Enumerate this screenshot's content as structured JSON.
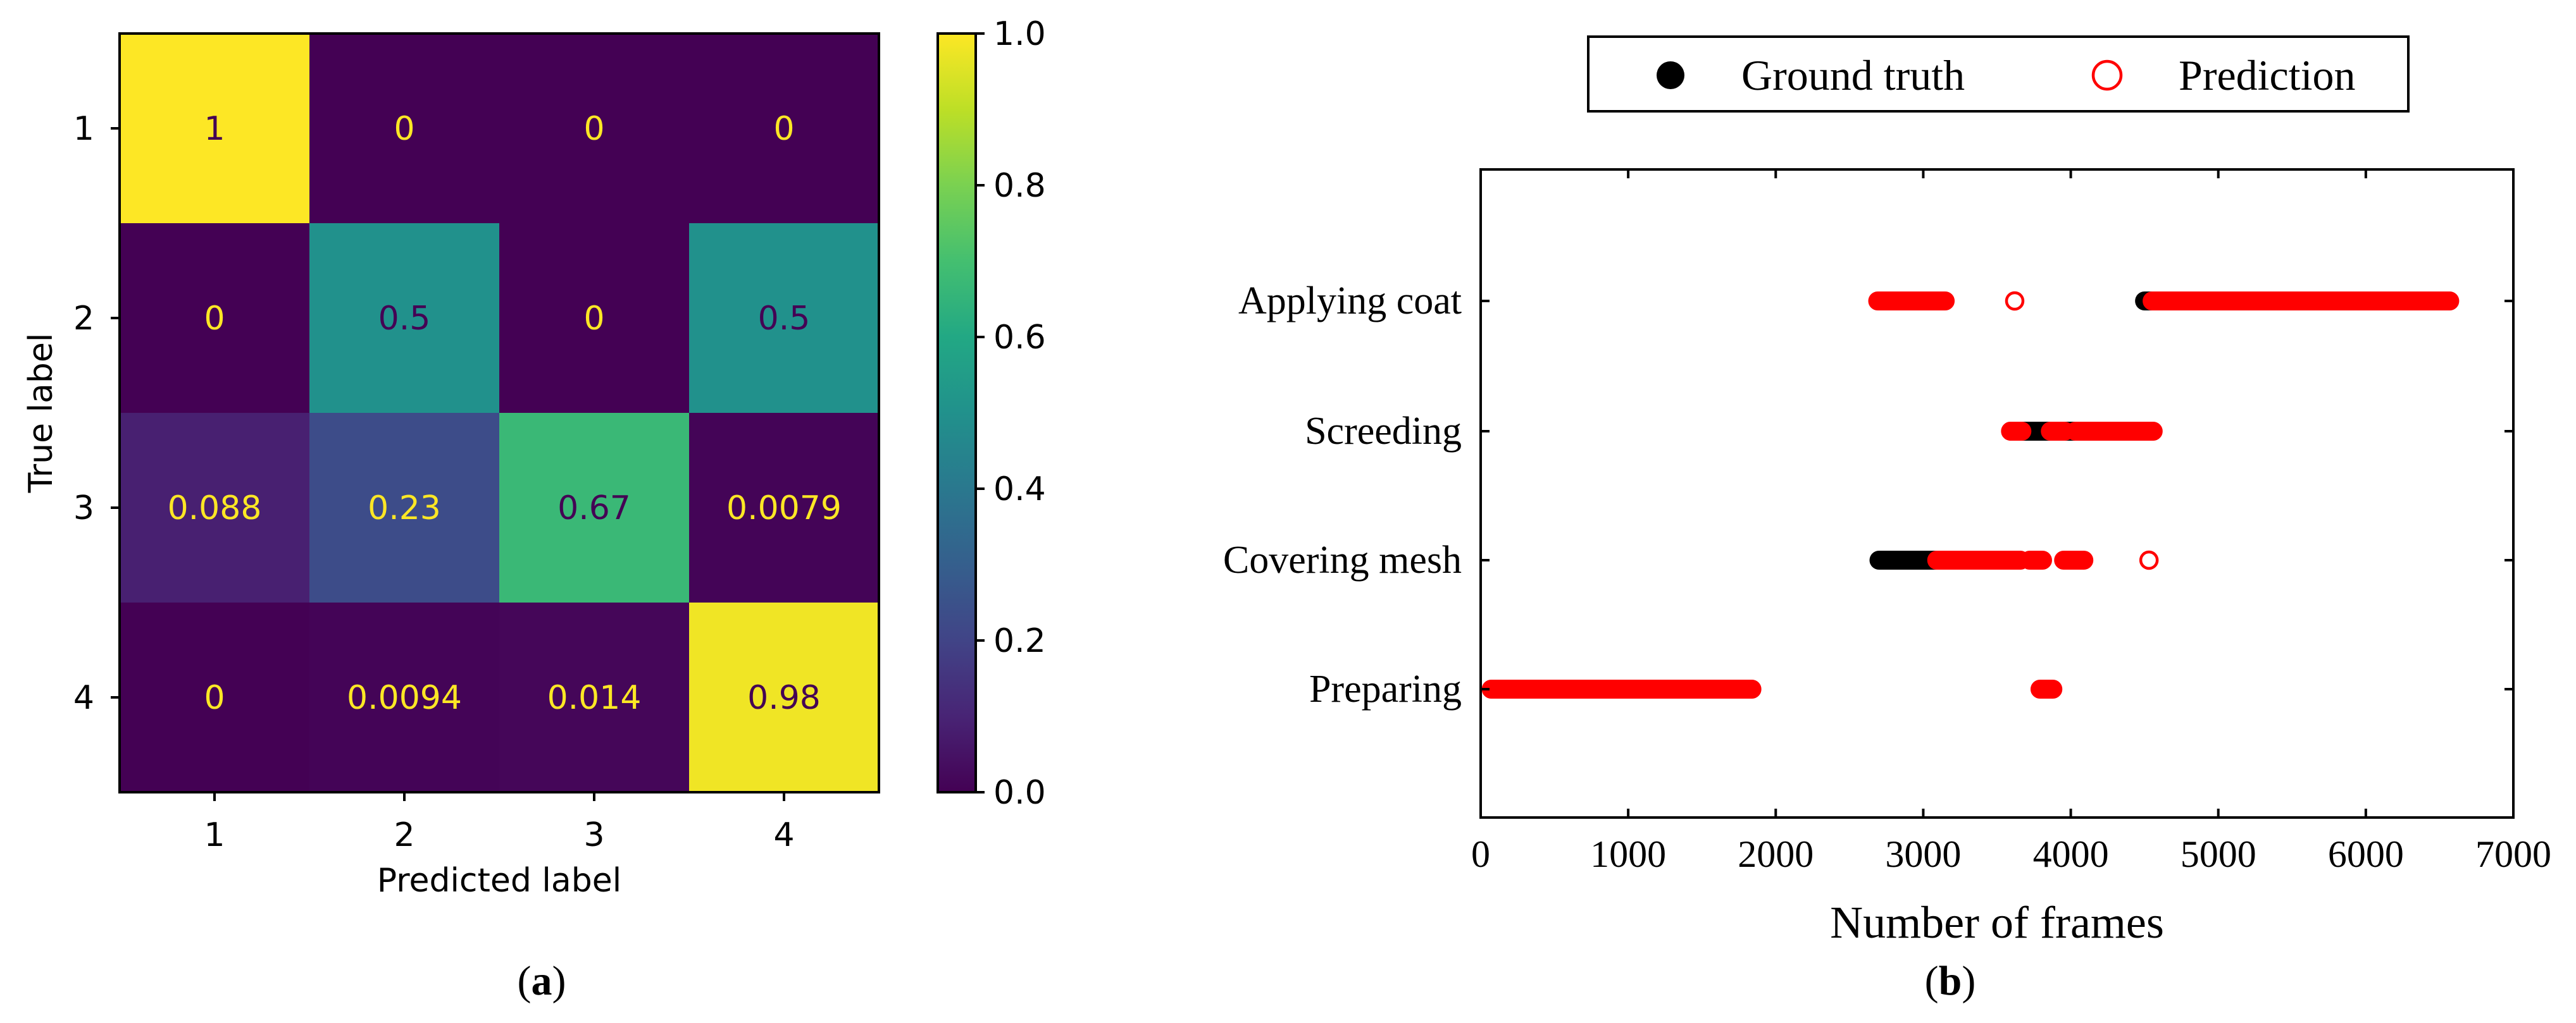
{
  "panels": {
    "a": {
      "caption_letter": "a"
    },
    "b": {
      "caption_letter": "b"
    }
  },
  "chart_data": [
    {
      "type": "heatmap",
      "title": "",
      "xlabel": "Predicted label",
      "ylabel": "True label",
      "x_categories": [
        "1",
        "2",
        "3",
        "4"
      ],
      "y_categories": [
        "1",
        "2",
        "3",
        "4"
      ],
      "values": [
        [
          1,
          0,
          0,
          0
        ],
        [
          0,
          0.5,
          0,
          0.5
        ],
        [
          0.088,
          0.23,
          0.67,
          0.0079
        ],
        [
          0,
          0.0094,
          0.014,
          0.98
        ]
      ],
      "cell_labels": [
        [
          "1",
          "0",
          "0",
          "0"
        ],
        [
          "0",
          "0.5",
          "0",
          "0.5"
        ],
        [
          "0.088",
          "0.23",
          "0.67",
          "0.0079"
        ],
        [
          "0",
          "0.0094",
          "0.014",
          "0.98"
        ]
      ],
      "colormap": "viridis",
      "colorbar": {
        "range": [
          0,
          1
        ],
        "ticks": [
          "0.0",
          "0.2",
          "0.4",
          "0.6",
          "0.8",
          "1.0"
        ]
      }
    },
    {
      "type": "scatter",
      "title": "",
      "xlabel": "Number of frames",
      "ylabel": "",
      "xlim": [
        0,
        7000
      ],
      "x_ticks": [
        "0",
        "1000",
        "2000",
        "3000",
        "4000",
        "5000",
        "6000",
        "7000"
      ],
      "y_categories": [
        "Preparing",
        "Covering mesh",
        "Screeding",
        "Applying coat"
      ],
      "legend": {
        "placement": "top-center",
        "entries": [
          "Ground truth",
          "Prediction"
        ]
      },
      "colors": {
        "ground_truth": "#000000",
        "prediction": "#ff0000"
      },
      "series": [
        {
          "name": "Ground truth",
          "marker": "filled-circle",
          "segments": [
            {
              "label": "Preparing",
              "x_start": 80,
              "x_end": 1830
            },
            {
              "label": "Covering mesh",
              "x_start": 2700,
              "x_end": 3650
            },
            {
              "label": "Screeding",
              "x_start": 3600,
              "x_end": 4550
            },
            {
              "label": "Applying coat",
              "x_start": 4500,
              "x_end": 6560
            }
          ]
        },
        {
          "name": "Prediction",
          "marker": "open-circle",
          "segments": [
            {
              "label": "Preparing",
              "x_start": 80,
              "x_end": 1830
            },
            {
              "label": "Preparing",
              "x_start": 3800,
              "x_end": 3870
            },
            {
              "label": "Covering mesh",
              "x_start": 3100,
              "x_end": 3650
            },
            {
              "label": "Covering mesh",
              "x_start": 3730,
              "x_end": 3800
            },
            {
              "label": "Covering mesh",
              "x_start": 3960,
              "x_end": 4080
            },
            {
              "label": "Covering mesh",
              "x_start": 4530,
              "x_end": 4530
            },
            {
              "label": "Screeding",
              "x_start": 3600,
              "x_end": 3660
            },
            {
              "label": "Screeding",
              "x_start": 3870,
              "x_end": 3950
            },
            {
              "label": "Screeding",
              "x_start": 4040,
              "x_end": 4550
            },
            {
              "label": "Applying coat",
              "x_start": 2700,
              "x_end": 3140
            },
            {
              "label": "Applying coat",
              "x_start": 3620,
              "x_end": 3620
            },
            {
              "label": "Applying coat",
              "x_start": 4560,
              "x_end": 6560
            }
          ]
        }
      ]
    }
  ]
}
